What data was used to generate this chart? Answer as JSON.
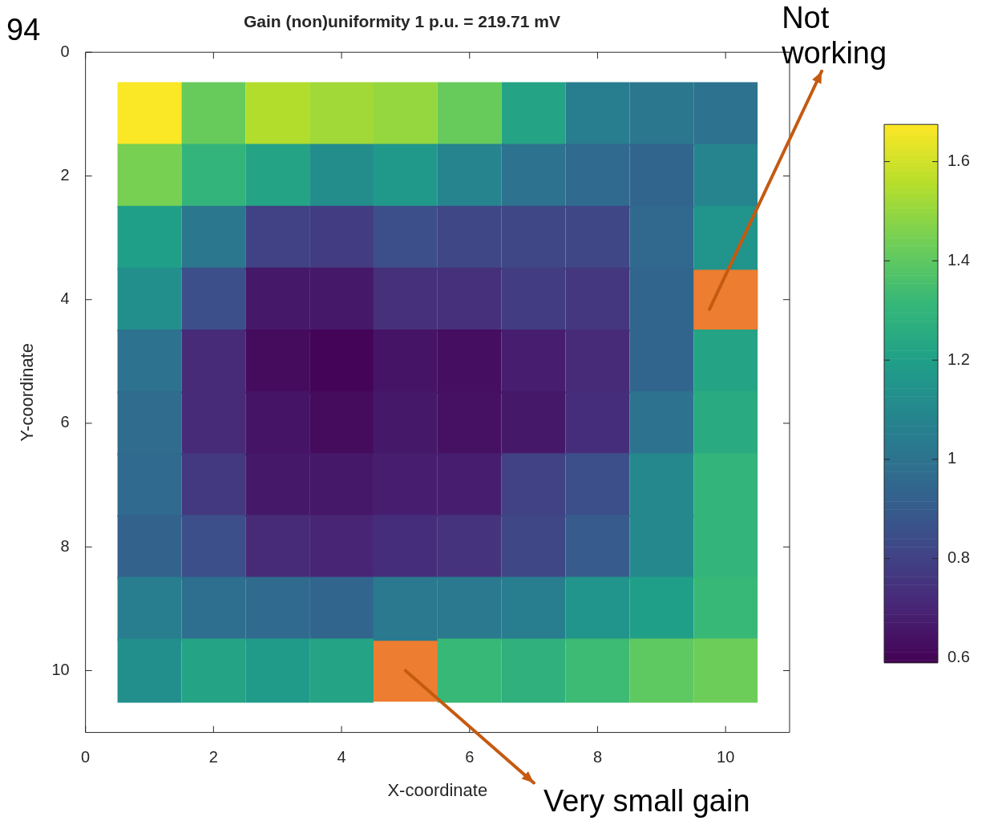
{
  "chart_data": {
    "type": "heatmap",
    "title": "Gain (non)uniformity 1 p.u. = 219.71 mV",
    "xlabel": "X-coordinate",
    "ylabel": "Y-coordinate",
    "x": [
      1,
      2,
      3,
      4,
      5,
      6,
      7,
      8,
      9,
      10
    ],
    "y": [
      1,
      2,
      3,
      4,
      5,
      6,
      7,
      8,
      9,
      10
    ],
    "xlim": [
      0,
      11
    ],
    "ylim": [
      11,
      0
    ],
    "xticks": [
      0,
      2,
      4,
      6,
      8,
      10
    ],
    "yticks": [
      0,
      2,
      4,
      6,
      8,
      10
    ],
    "cells": [
      [
        1.67,
        1.42,
        1.55,
        1.52,
        1.5,
        1.42,
        1.22,
        1.05,
        1.02,
        1.0
      ],
      [
        1.45,
        1.3,
        1.22,
        1.12,
        1.17,
        1.08,
        1.0,
        0.96,
        0.94,
        1.08
      ],
      [
        1.2,
        1.02,
        0.8,
        0.78,
        0.85,
        0.82,
        0.82,
        0.82,
        0.95,
        1.15
      ],
      [
        1.13,
        0.85,
        0.66,
        0.66,
        0.74,
        0.74,
        0.78,
        0.76,
        0.94,
        null
      ],
      [
        1.0,
        0.72,
        0.62,
        0.6,
        0.65,
        0.63,
        0.68,
        0.72,
        0.94,
        1.22
      ],
      [
        0.97,
        0.72,
        0.65,
        0.62,
        0.66,
        0.64,
        0.66,
        0.73,
        1.0,
        1.25
      ],
      [
        0.96,
        0.77,
        0.66,
        0.66,
        0.68,
        0.68,
        0.8,
        0.85,
        1.1,
        1.3
      ],
      [
        0.93,
        0.85,
        0.72,
        0.7,
        0.73,
        0.75,
        0.82,
        0.9,
        1.1,
        1.3
      ],
      [
        1.05,
        0.98,
        0.96,
        0.94,
        1.03,
        1.03,
        1.05,
        1.15,
        1.2,
        1.32
      ],
      [
        1.13,
        1.22,
        1.18,
        1.22,
        null,
        1.32,
        1.28,
        1.33,
        1.4,
        1.43
      ]
    ],
    "clim": [
      0.59,
      1.675
    ],
    "cticks": [
      {
        "value": 0.6,
        "label": "0.6"
      },
      {
        "value": 0.8,
        "label": "0.8"
      },
      1,
      {
        "value": 1.2,
        "label": "1.2"
      },
      {
        "value": 1.4,
        "label": "1.4"
      },
      {
        "value": 1.6,
        "label": "1.6"
      }
    ],
    "series": [
      {
        "type": "bar",
        "color": "#ed7d31",
        "x": [
          10,
          5
        ],
        "base": [
          3.5,
          9.5
        ],
        "values": [
          1,
          1
        ]
      }
    ],
    "annotations": [
      "94",
      "Not working",
      "Very small gain"
    ]
  }
}
